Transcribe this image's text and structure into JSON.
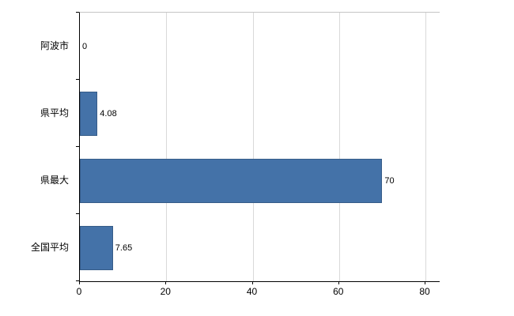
{
  "chart_data": {
    "type": "bar",
    "orientation": "horizontal",
    "title": "",
    "xlabel": "",
    "ylabel": "",
    "categories": [
      "阿波市",
      "県平均",
      "県最大",
      "全国平均"
    ],
    "values": [
      0,
      4.08,
      70,
      7.65
    ],
    "value_labels": [
      "0",
      "4.08",
      "70",
      "7.65"
    ],
    "xlim": [
      0,
      80
    ],
    "x_ticks": [
      0,
      20,
      40,
      60,
      80
    ],
    "x_tick_labels": [
      "0",
      "20",
      "40",
      "60",
      "80"
    ],
    "grid": true,
    "legend": "none",
    "bar_color": "#4472a8",
    "bar_border_color": "#365c88",
    "gridline_color": "#d9d9d9"
  }
}
